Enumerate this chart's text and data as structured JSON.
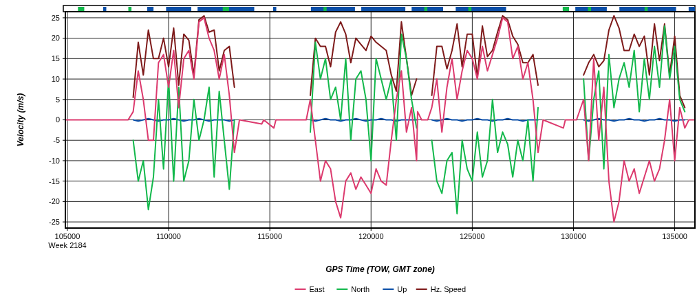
{
  "chart_data": {
    "type": "line",
    "xlabel": "GPS Time (TOW, GMT zone)",
    "ylabel": "Velocity (m/s)",
    "x": [
      104900,
      107750,
      107800,
      108000,
      108250,
      108500,
      108750,
      109000,
      109250,
      109500,
      109750,
      110000,
      110250,
      110500,
      110750,
      111000,
      111250,
      111500,
      111750,
      112000,
      112250,
      112500,
      112750,
      113000,
      113250,
      113500,
      114600,
      114700,
      115200,
      115300,
      116800,
      117000,
      117250,
      117500,
      117750,
      118000,
      118250,
      118500,
      118750,
      119000,
      119250,
      119500,
      119750,
      120000,
      120250,
      120500,
      120750,
      121000,
      121250,
      121500,
      121750,
      122000,
      122250,
      122300,
      122500,
      122800,
      123000,
      123250,
      123500,
      123750,
      124000,
      124250,
      124500,
      124750,
      125000,
      125250,
      125500,
      125750,
      126000,
      126250,
      126500,
      126750,
      127000,
      127250,
      127500,
      127750,
      128000,
      128250,
      128500,
      129500,
      129600,
      130000,
      130150,
      130500,
      130750,
      131000,
      131250,
      131500,
      131750,
      132000,
      132250,
      132500,
      132750,
      133000,
      133250,
      133500,
      133750,
      134000,
      134250,
      134500,
      134750,
      135000,
      135250,
      135500,
      135700,
      136000
    ],
    "series": [
      {
        "name": "East",
        "color": "#dc3a6e",
        "values": [
          0,
          0,
          0,
          0,
          2,
          12,
          5,
          -5,
          -5,
          14,
          16,
          8,
          17,
          3,
          15,
          17,
          10,
          24,
          25,
          20,
          17,
          10,
          16,
          6,
          -8,
          0,
          -1,
          0,
          -2,
          0,
          0,
          5,
          -5,
          -15,
          -10,
          -12,
          -20,
          -24,
          -15,
          -13,
          -17,
          -14,
          -16,
          -18,
          -12,
          -15,
          -16,
          -5,
          5,
          12,
          -3,
          3,
          -10,
          2,
          0,
          0,
          3,
          10,
          -3,
          8,
          15,
          5,
          12,
          17,
          15,
          10,
          18,
          12,
          16,
          20,
          25,
          24,
          15,
          18,
          10,
          14,
          5,
          -8,
          0,
          -2,
          0,
          0,
          0,
          5,
          -10,
          15,
          -5,
          8,
          -15,
          -25,
          -20,
          -10,
          -15,
          -12,
          -18,
          -14,
          -10,
          -15,
          -12,
          -5,
          5,
          -10,
          3,
          -2,
          0,
          0
        ]
      },
      {
        "name": "North",
        "color": "#12b84b",
        "values": [
          null,
          null,
          null,
          null,
          -5,
          -15,
          -10,
          -22,
          -14,
          5,
          -12,
          10,
          -15,
          8,
          -15,
          -10,
          5,
          -5,
          0,
          8,
          -14,
          7,
          -5,
          -17,
          0,
          null,
          null,
          null,
          null,
          null,
          null,
          -3,
          19,
          10,
          15,
          5,
          8,
          0,
          15,
          -5,
          10,
          12,
          5,
          -10,
          15,
          10,
          5,
          10,
          -5,
          21,
          15,
          5,
          -2,
          null,
          null,
          null,
          -5,
          -15,
          -18,
          -10,
          -8,
          -23,
          -5,
          -12,
          -15,
          -3,
          -14,
          -10,
          5,
          -8,
          -3,
          -6,
          -14,
          -5,
          -10,
          0,
          -15,
          3,
          null,
          null,
          null,
          null,
          null,
          10,
          -10,
          5,
          12,
          -12,
          16,
          3,
          10,
          14,
          8,
          17,
          2,
          15,
          5,
          18,
          8,
          23,
          10,
          18,
          5,
          2,
          null,
          null
        ]
      },
      {
        "name": "Up",
        "color": "#0b4fa8",
        "values": [
          null,
          null,
          null,
          null,
          0,
          -0.3,
          0,
          0.3,
          0,
          -0.3,
          0,
          0,
          0.3,
          0,
          -0.3,
          0,
          0,
          0.3,
          0,
          -0.3,
          0,
          0,
          0,
          -0.3,
          0,
          null,
          null,
          null,
          null,
          null,
          null,
          0,
          -0.3,
          0,
          0.3,
          0,
          0,
          -0.3,
          0,
          0,
          0.3,
          0,
          -0.3,
          0,
          0,
          0.3,
          0,
          0,
          -0.3,
          0,
          0,
          0,
          0,
          null,
          null,
          null,
          0,
          -0.3,
          0,
          0.3,
          0,
          0,
          -0.3,
          0,
          0,
          0.3,
          0,
          0,
          -0.3,
          0,
          0,
          0.3,
          0,
          0,
          -0.3,
          0,
          0,
          0,
          null,
          null,
          null,
          null,
          null,
          0,
          -0.3,
          0,
          0.3,
          0,
          0,
          -0.3,
          0,
          0,
          0.3,
          0,
          0,
          -0.3,
          0,
          0,
          0.3,
          0,
          0,
          -0.3,
          0,
          0,
          null,
          null
        ]
      },
      {
        "name": "Hz. Speed",
        "color": "#7e1a1a",
        "values": [
          null,
          null,
          null,
          null,
          5.5,
          19,
          11,
          22,
          15,
          15,
          20,
          13,
          22.5,
          8.5,
          21,
          19.5,
          11,
          24.5,
          25.5,
          21.5,
          22,
          12,
          17,
          18,
          8,
          null,
          null,
          null,
          null,
          null,
          null,
          6,
          20,
          18,
          18,
          13,
          21.5,
          24,
          21,
          14,
          20,
          18.5,
          17,
          20.5,
          19,
          18,
          17,
          11,
          7,
          24,
          15,
          6,
          10,
          null,
          null,
          null,
          6,
          18,
          18,
          12.5,
          17,
          23.5,
          13,
          21,
          21,
          10.5,
          23,
          15.5,
          17,
          21.5,
          25.5,
          24.5,
          20.5,
          18.5,
          14,
          14,
          16,
          8.5,
          null,
          null,
          null,
          null,
          null,
          11,
          14,
          16,
          13,
          14.5,
          22,
          25.5,
          22.5,
          17,
          17,
          21,
          18,
          20.5,
          11,
          23.5,
          14.5,
          23.5,
          11,
          20.5,
          6,
          3,
          null,
          null
        ]
      }
    ],
    "xlim": [
      104900,
      136000
    ],
    "ylim": [
      -26.5,
      26.5
    ],
    "xticks": [
      {
        "value": 105000,
        "label": "105000\nWeek 2184"
      },
      110000,
      115000,
      120000,
      125000,
      130000,
      135000
    ],
    "yticks": [
      -25,
      -20,
      -15,
      -10,
      -5,
      0,
      5,
      10,
      15,
      20,
      25
    ],
    "grid": true,
    "legend": "bottom"
  }
}
